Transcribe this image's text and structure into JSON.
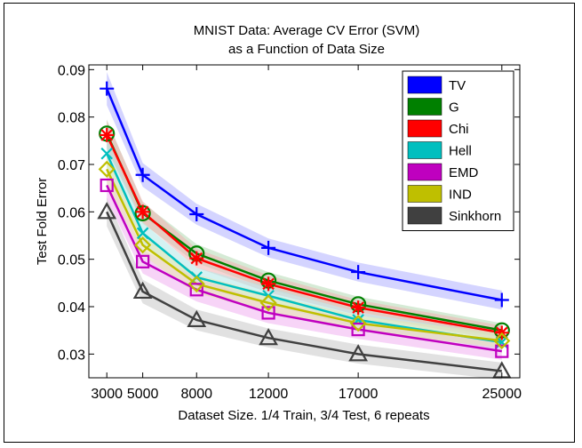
{
  "chart_data": {
    "type": "line",
    "title": [
      "MNIST Data: Average CV Error (SVM)",
      "as a Function of Data Size"
    ],
    "xlabel": "Dataset Size. 1/4 Train, 3/4 Test, 6 repeats",
    "ylabel": "Test Fold Error",
    "x": [
      3000,
      5000,
      8000,
      12000,
      17000,
      25000
    ],
    "x_tick_labels": [
      "3000",
      "5000",
      "8000",
      "12000",
      "17000",
      "25000"
    ],
    "xlim": [
      2000,
      26000
    ],
    "ylim": [
      0.025,
      0.091
    ],
    "y_ticks": [
      0.03,
      0.04,
      0.05,
      0.06,
      0.07,
      0.08,
      0.09
    ],
    "y_tick_labels": [
      "0.03",
      "0.04",
      "0.05",
      "0.06",
      "0.07",
      "0.08",
      "0.09"
    ],
    "legend_position": "top-right",
    "series": [
      {
        "name": "TV",
        "color": "#0000ff",
        "fill": "#b0b0ff",
        "marker": "plus",
        "values": [
          0.086,
          0.0678,
          0.0595,
          0.0524,
          0.0473,
          0.0414
        ],
        "band": [
          0.0035,
          0.0025,
          0.0022,
          0.002,
          0.002,
          0.002
        ]
      },
      {
        "name": "G",
        "color": "#008000",
        "fill": "#b3d9b3",
        "marker": "circle",
        "values": [
          0.0765,
          0.0597,
          0.0512,
          0.0455,
          0.0405,
          0.035
        ],
        "band": [
          0.003,
          0.0022,
          0.002,
          0.0018,
          0.0016,
          0.0015
        ]
      },
      {
        "name": "Chi",
        "color": "#ff0000",
        "fill": "#f0b0b0",
        "marker": "star",
        "values": [
          0.0762,
          0.06,
          0.0502,
          0.0448,
          0.0398,
          0.0345
        ],
        "band": [
          0.003,
          0.0022,
          0.002,
          0.0018,
          0.0016,
          0.0015
        ]
      },
      {
        "name": "Hell",
        "color": "#00bfbf",
        "fill": "#b0e8e8",
        "marker": "x",
        "values": [
          0.0723,
          0.0555,
          0.0462,
          0.0423,
          0.0372,
          0.0325
        ],
        "band": [
          0.003,
          0.0022,
          0.002,
          0.0018,
          0.0016,
          0.0015
        ]
      },
      {
        "name": "EMD",
        "color": "#bf00bf",
        "fill": "#f0b0f0",
        "marker": "square",
        "values": [
          0.0656,
          0.0495,
          0.0436,
          0.0387,
          0.0352,
          0.0306
        ],
        "band": [
          0.003,
          0.0025,
          0.0025,
          0.0022,
          0.002,
          0.0018
        ]
      },
      {
        "name": "IND",
        "color": "#bfbf00",
        "fill": "#e8e8b0",
        "marker": "diamond",
        "values": [
          0.069,
          0.053,
          0.0448,
          0.0408,
          0.0365,
          0.0328
        ],
        "band": [
          0.003,
          0.0022,
          0.002,
          0.0018,
          0.0016,
          0.0015
        ]
      },
      {
        "name": "Sinkhorn",
        "color": "#404040",
        "fill": "#c8c8c8",
        "marker": "triangle",
        "values": [
          0.06,
          0.0432,
          0.0372,
          0.0334,
          0.03,
          0.0264
        ],
        "band": [
          0.003,
          0.0025,
          0.0022,
          0.002,
          0.002,
          0.0018
        ]
      }
    ]
  }
}
